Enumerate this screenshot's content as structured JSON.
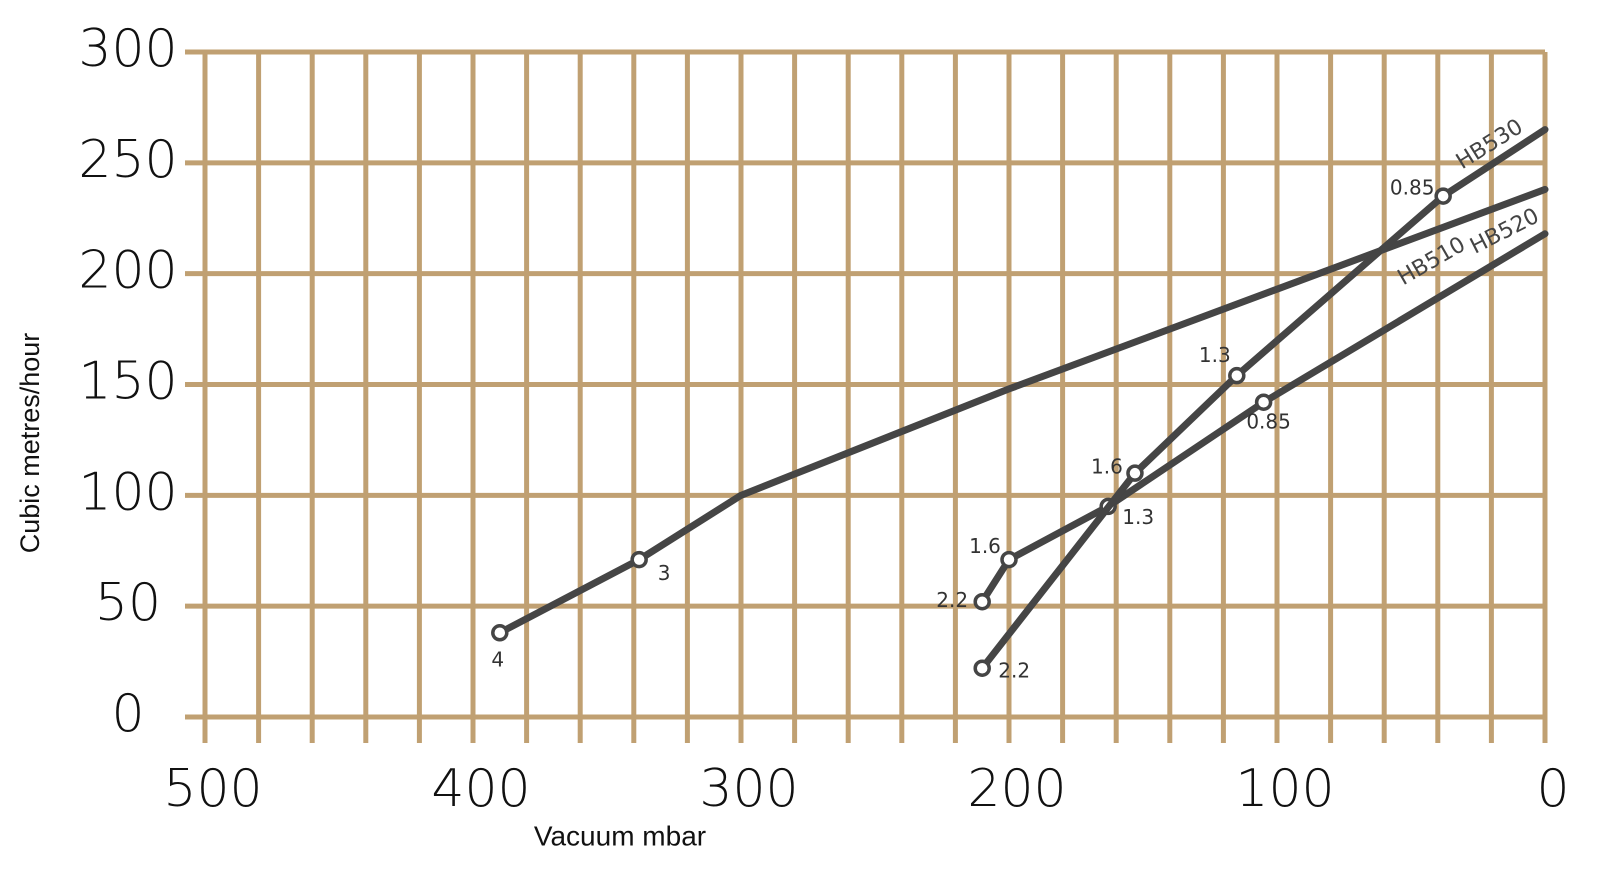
{
  "chart_data": {
    "type": "line",
    "xlabel": "Vacuum mbar",
    "ylabel": "Cubic metres/hour",
    "xlim": [
      500,
      0
    ],
    "xticks": [
      500,
      400,
      300,
      200,
      100,
      0
    ],
    "x_gridlines": [
      500,
      480,
      460,
      440,
      420,
      400,
      380,
      360,
      340,
      320,
      300,
      280,
      260,
      240,
      220,
      200,
      180,
      160,
      140,
      120,
      100,
      80,
      60,
      40,
      20,
      0
    ],
    "ylim": [
      0,
      300
    ],
    "yticks": [
      0,
      50,
      100,
      150,
      200,
      250,
      300
    ],
    "grid": true,
    "grid_color": "#c0a072",
    "series": [
      {
        "name": "HB510",
        "color": "#454545",
        "x": [
          390,
          338,
          300,
          200,
          100,
          0
        ],
        "values": [
          38,
          71,
          100,
          148,
          193,
          238
        ],
        "point_labels": [
          "4",
          "3",
          null,
          null,
          null,
          null
        ]
      },
      {
        "name": "HB520",
        "color": "#454545",
        "x": [
          210,
          200,
          163,
          105,
          0
        ],
        "values": [
          52,
          71,
          95,
          142,
          218
        ],
        "point_labels": [
          "2.2",
          "1.6",
          "1.3",
          "0.85",
          null
        ]
      },
      {
        "name": "HB530",
        "color": "#454545",
        "x": [
          210,
          153,
          115,
          38,
          0
        ],
        "values": [
          22,
          110,
          154,
          235,
          265
        ],
        "point_labels": [
          "2.2",
          "1.6",
          "1.3",
          "0.85",
          null
        ]
      }
    ]
  }
}
